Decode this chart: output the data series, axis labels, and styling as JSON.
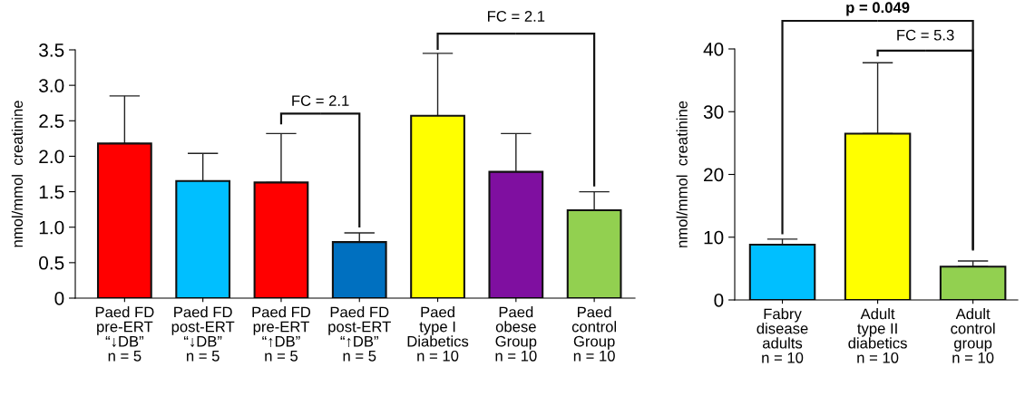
{
  "chart_data": [
    {
      "type": "bar",
      "ylabel": "nmol/mmol  creatinine",
      "categories": [
        "Paed FD\npre-ERT\n“↓DB”\nn = 5",
        "Paed FD\npost-ERT\n“↓DB”\nn = 5",
        "Paed FD\npre-ERT\n“↑DB”\nn = 5",
        "Paed FD\npost-ERT\n“↑DB”\nn = 5",
        "Paed\ntype I\nDiabetics\nn = 10",
        "Paed\nobese\nGroup\nn = 10",
        "Paed\ncontrol\nGroup\nn = 10"
      ],
      "values": [
        2.18,
        1.65,
        1.63,
        0.79,
        2.57,
        1.78,
        1.24
      ],
      "errors": [
        [
          2.18,
          2.85
        ],
        [
          1.65,
          2.04
        ],
        [
          1.63,
          2.32
        ],
        [
          0.79,
          0.92
        ],
        [
          2.57,
          3.45
        ],
        [
          1.78,
          2.32
        ],
        [
          1.24,
          1.5
        ]
      ],
      "colors": [
        "#ff0000",
        "#00bfff",
        "#ff0000",
        "#0070c0",
        "#ffff00",
        "#7f0fa0",
        "#92d050"
      ],
      "ylim": [
        0,
        3.5
      ],
      "yticks": [
        0,
        {
          "value": 0.5,
          "label": "0.5"
        },
        {
          "value": 1.0,
          "label": "1.0"
        },
        {
          "value": 1.5,
          "label": "1.5"
        },
        {
          "value": 2.0,
          "label": "2.0"
        },
        {
          "value": 2.5,
          "label": "2.5"
        },
        {
          "value": 3.0,
          "label": "3.0"
        },
        {
          "value": 3.5,
          "label": "3.5"
        }
      ],
      "grid": false,
      "legend": false,
      "annotations": [
        "FC = 2.1",
        "FC = 2.1"
      ]
    },
    {
      "type": "bar",
      "ylabel": "nmol/mmol  creatinine",
      "categories": [
        "Fabry\ndisease\nadults\nn = 10",
        "Adult\ntype II\ndiabetics\nn = 10",
        "Adult\ncontrol\ngroup\nn = 10"
      ],
      "values": [
        8.8,
        26.5,
        5.3
      ],
      "errors": [
        [
          8.8,
          9.7
        ],
        [
          26.5,
          37.8
        ],
        [
          5.3,
          6.2
        ]
      ],
      "colors": [
        "#00bfff",
        "#ffff00",
        "#92d050"
      ],
      "ylim": [
        0,
        40
      ],
      "yticks": [
        0,
        10,
        20,
        30,
        40
      ],
      "grid": false,
      "legend": false,
      "annotations": [
        "p = 0.049",
        "FC = 5.3"
      ]
    }
  ]
}
